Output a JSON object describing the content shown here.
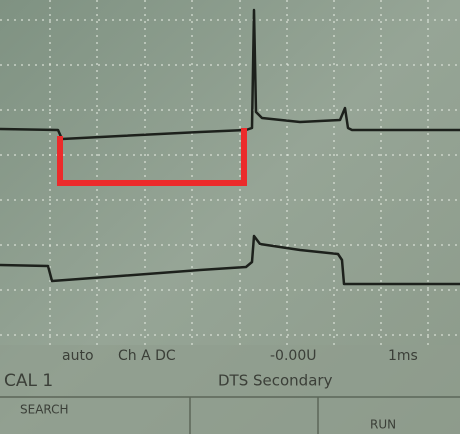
{
  "status_line": {
    "mode": "auto",
    "channel": "Ch A DC",
    "offset": "-0.00U",
    "timebase": "1ms"
  },
  "label": "CAL 1",
  "title": "DTS Secondary",
  "menu": [
    "SEARCH",
    "RUN"
  ]
}
